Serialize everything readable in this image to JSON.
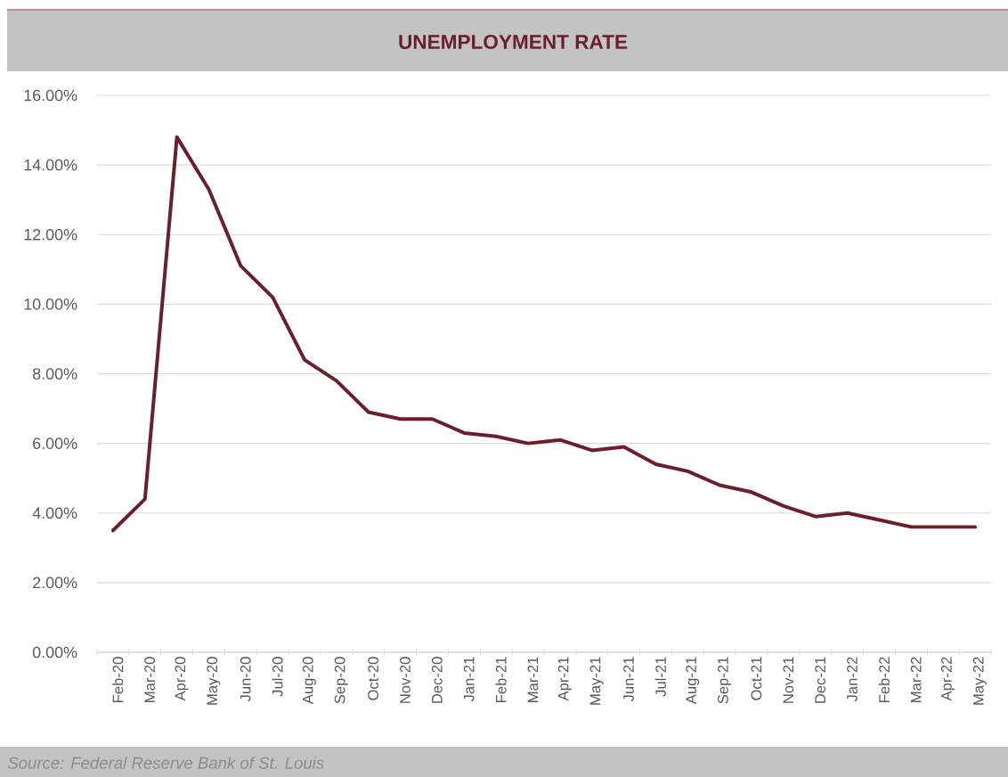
{
  "chart_data": {
    "type": "line",
    "title": "UNEMPLOYMENT RATE",
    "annotations": [
      "Source: Federal Reserve Bank of St. Louis"
    ],
    "categories": [
      "Feb-20",
      "Mar-20",
      "Apr-20",
      "May-20",
      "Jun-20",
      "Jul-20",
      "Aug-20",
      "Sep-20",
      "Oct-20",
      "Nov-20",
      "Dec-20",
      "Jan-21",
      "Feb-21",
      "Mar-21",
      "Apr-21",
      "May-21",
      "Jun-21",
      "Jul-21",
      "Aug-21",
      "Sep-21",
      "Oct-21",
      "Nov-21",
      "Dec-21",
      "Jan-22",
      "Feb-22",
      "Mar-22",
      "Apr-22",
      "May-22"
    ],
    "series": [
      {
        "color": "#6b1f2d",
        "values": [
          3.5,
          4.4,
          14.8,
          13.3,
          11.1,
          10.2,
          8.4,
          7.8,
          6.9,
          6.7,
          6.7,
          6.3,
          6.2,
          6.0,
          6.1,
          5.8,
          5.9,
          5.4,
          5.2,
          4.8,
          4.6,
          4.2,
          3.9,
          4.0,
          3.8,
          3.6,
          3.6,
          3.6
        ]
      }
    ],
    "ylim": [
      0,
      16
    ],
    "yticks": [
      {
        "value": 0,
        "label": "0.00%"
      },
      {
        "value": 2,
        "label": "2.00%"
      },
      {
        "value": 4,
        "label": "4.00%"
      },
      {
        "value": 6,
        "label": "6.00%"
      },
      {
        "value": 8,
        "label": "8.00%"
      },
      {
        "value": 10,
        "label": "10.00%"
      },
      {
        "value": 12,
        "label": "12.00%"
      },
      {
        "value": 14,
        "label": "14.00%"
      },
      {
        "value": 16,
        "label": "16.00%"
      }
    ],
    "grid": "y",
    "marker": "none"
  }
}
